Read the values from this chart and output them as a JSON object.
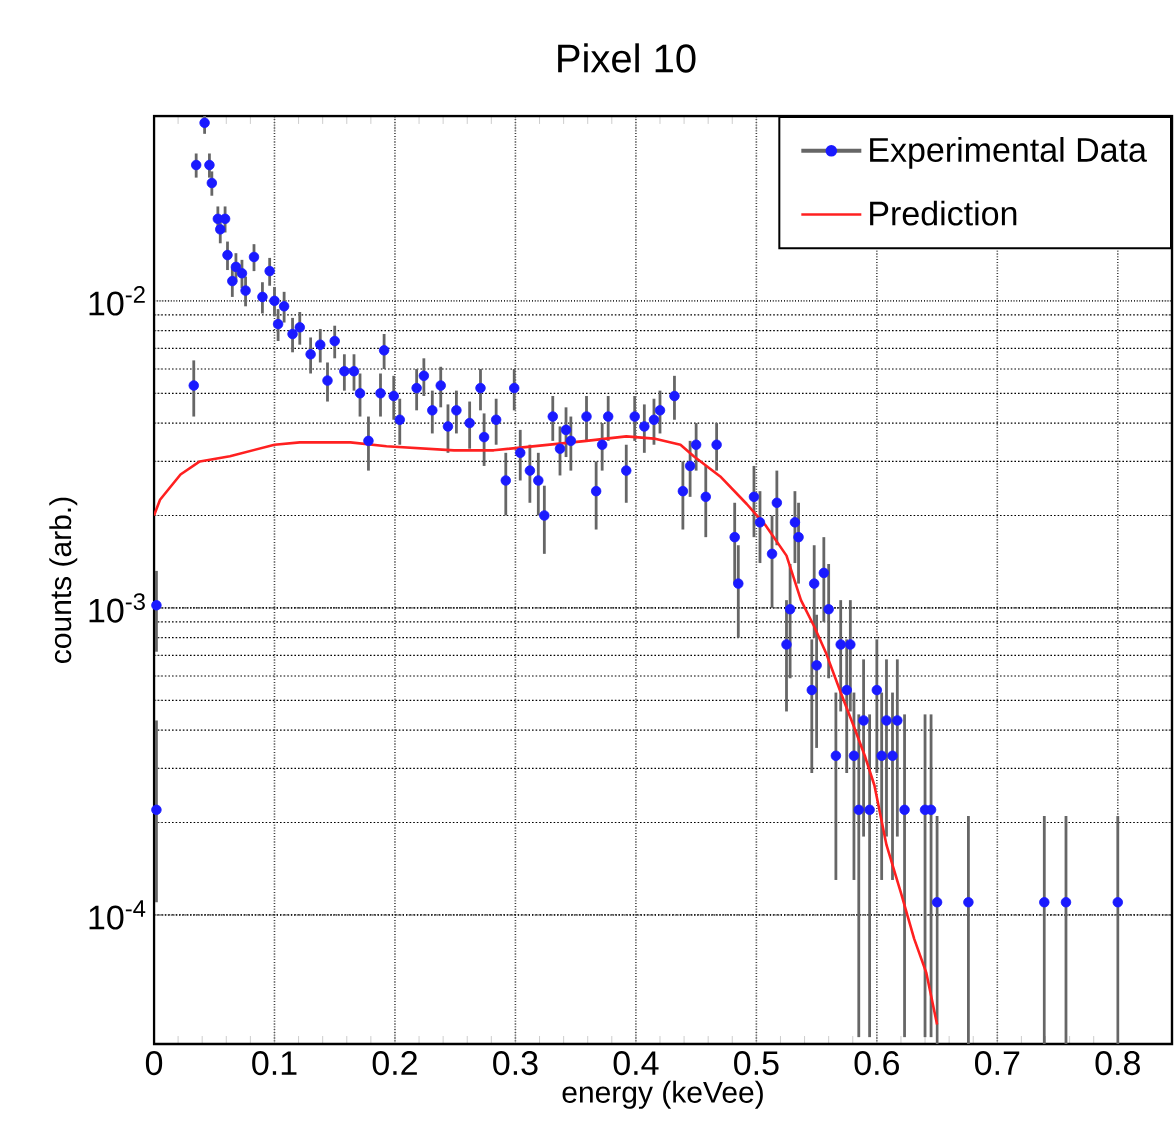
{
  "chart_data": {
    "type": "scatter",
    "title": "Pixel 10",
    "xlabel": "energy (keVee)",
    "ylabel": "counts (arb.)",
    "xlim": [
      0,
      0.845
    ],
    "ylim": [
      3.8e-05,
      0.04
    ],
    "log": true,
    "grid": true,
    "legend": "top right",
    "xticks": [
      0,
      0.1,
      0.2,
      0.3,
      0.4,
      0.5,
      0.6,
      0.7,
      0.8
    ],
    "yticks": [
      {
        "value": 0.0001,
        "label": "10$^{-4}$"
      },
      {
        "value": 0.001,
        "label": "10$^{-3}$"
      },
      {
        "value": 0.01,
        "label": "10$^{-2}$"
      }
    ],
    "series": [
      {
        "name": "Experimental Data",
        "marker": "circle",
        "color": "#1a1aff",
        "x": [
          0.002,
          0.002,
          0.033,
          0.035,
          0.042,
          0.046,
          0.048,
          0.053,
          0.055,
          0.059,
          0.061,
          0.068,
          0.065,
          0.073,
          0.076,
          0.083,
          0.09,
          0.096,
          0.1,
          0.103,
          0.108,
          0.115,
          0.121,
          0.13,
          0.138,
          0.144,
          0.15,
          0.158,
          0.166,
          0.171,
          0.178,
          0.188,
          0.191,
          0.199,
          0.204,
          0.218,
          0.224,
          0.231,
          0.238,
          0.244,
          0.251,
          0.262,
          0.271,
          0.274,
          0.284,
          0.292,
          0.299,
          0.304,
          0.312,
          0.319,
          0.324,
          0.331,
          0.337,
          0.342,
          0.346,
          0.359,
          0.367,
          0.372,
          0.377,
          0.392,
          0.399,
          0.407,
          0.415,
          0.42,
          0.432,
          0.439,
          0.445,
          0.45,
          0.458,
          0.467,
          0.482,
          0.485,
          0.498,
          0.503,
          0.513,
          0.517,
          0.525,
          0.528,
          0.532,
          0.535,
          0.546,
          0.548,
          0.55,
          0.556,
          0.56,
          0.566,
          0.57,
          0.575,
          0.578,
          0.581,
          0.585,
          0.589,
          0.594,
          0.6,
          0.604,
          0.608,
          0.613,
          0.617,
          0.623,
          0.64,
          0.645,
          0.65,
          0.676,
          0.739,
          0.757,
          0.8
        ],
        "values": [
          0.00102,
          0.00022,
          0.0053,
          0.0277,
          0.038,
          0.0277,
          0.0242,
          0.0185,
          0.0171,
          0.0185,
          0.0141,
          0.0129,
          0.0116,
          0.0123,
          0.0108,
          0.0139,
          0.0103,
          0.0125,
          0.01,
          0.0084,
          0.0096,
          0.0078,
          0.0082,
          0.0067,
          0.0072,
          0.0055,
          0.0074,
          0.0059,
          0.0059,
          0.005,
          0.0035,
          0.005,
          0.0069,
          0.0049,
          0.0041,
          0.0052,
          0.0057,
          0.0044,
          0.0053,
          0.0039,
          0.0044,
          0.004,
          0.0052,
          0.0036,
          0.0041,
          0.0026,
          0.0052,
          0.0032,
          0.0028,
          0.0026,
          0.002,
          0.0042,
          0.0033,
          0.0038,
          0.0035,
          0.0042,
          0.0024,
          0.0034,
          0.0042,
          0.0028,
          0.0042,
          0.0039,
          0.0041,
          0.0044,
          0.0049,
          0.0024,
          0.0029,
          0.0034,
          0.0023,
          0.0034,
          0.0017,
          0.0012,
          0.0023,
          0.0019,
          0.0015,
          0.0022,
          0.00076,
          0.00099,
          0.0019,
          0.0017,
          0.00054,
          0.0012,
          0.00065,
          0.0013,
          0.00099,
          0.00033,
          0.00076,
          0.00054,
          0.00076,
          0.00033,
          0.00022,
          0.00043,
          0.00022,
          0.00054,
          0.00033,
          0.00043,
          0.00033,
          0.00043,
          0.00022,
          0.00022,
          0.00022,
          0.00011,
          0.00011,
          0.00011,
          0.00011,
          0.00011
        ],
        "errors": [
          0.0003,
          [
            0.00011,
            0.00043
          ],
          0.0011,
          0.0025,
          0.003,
          0.0025,
          0.0022,
          0.0018,
          0.0017,
          0.0018,
          0.0015,
          0.0014,
          0.0013,
          0.0013,
          0.0012,
          0.0014,
          0.0012,
          0.0013,
          0.0011,
          0.001,
          0.0011,
          0.001,
          0.001,
          0.0009,
          0.0009,
          0.0008,
          0.0009,
          0.0008,
          0.0008,
          0.0008,
          0.0007,
          0.0008,
          0.0009,
          0.0008,
          0.0007,
          0.0008,
          0.0008,
          0.0007,
          0.0008,
          0.0007,
          0.0007,
          0.0007,
          0.0008,
          0.0007,
          0.0007,
          0.0006,
          0.0008,
          0.0006,
          0.0006,
          0.0006,
          0.0005,
          0.0007,
          0.0006,
          0.0007,
          0.0007,
          0.0007,
          0.0006,
          0.0006,
          0.0007,
          0.0006,
          0.0007,
          0.0007,
          0.0007,
          0.0007,
          0.0008,
          0.0006,
          0.0006,
          0.0006,
          0.0006,
          0.0006,
          0.0005,
          0.0004,
          0.0006,
          0.0005,
          0.0005,
          0.0006,
          0.0003,
          0.0004,
          0.0005,
          0.0005,
          0.00025,
          0.0004,
          0.0003,
          0.0004,
          0.0004,
          0.0002,
          0.0003,
          0.00025,
          0.0003,
          0.0002,
          [
            4e-05,
            0.00045
          ],
          0.00025,
          [
            4e-05,
            0.00045
          ],
          0.00025,
          0.0002,
          0.00025,
          0.0002,
          0.00025,
          [
            4e-05,
            0.00045
          ],
          [
            4e-05,
            0.00045
          ],
          [
            4e-05,
            0.00045
          ],
          [
            3.8e-05,
            0.00021
          ],
          [
            3.8e-05,
            0.00021
          ],
          [
            3.8e-05,
            0.00021
          ],
          [
            3.8e-05,
            0.00021
          ],
          [
            3.8e-05,
            0.00021
          ]
        ]
      },
      {
        "name": "Prediction",
        "type": "line",
        "color": "#ff2020",
        "x": [
          0,
          0.005,
          0.022,
          0.038,
          0.063,
          0.1,
          0.121,
          0.163,
          0.193,
          0.249,
          0.282,
          0.359,
          0.392,
          0.415,
          0.437,
          0.448,
          0.47,
          0.492,
          0.508,
          0.525,
          0.537,
          0.548,
          0.558,
          0.57,
          0.581,
          0.59,
          0.598,
          0.608,
          0.62,
          0.631,
          0.641,
          0.65
        ],
        "values": [
          0.002,
          0.00225,
          0.00272,
          0.003,
          0.00312,
          0.0034,
          0.00346,
          0.00346,
          0.00336,
          0.00326,
          0.00326,
          0.0035,
          0.00362,
          0.00356,
          0.0034,
          0.00312,
          0.00268,
          0.00218,
          0.00185,
          0.00148,
          0.00106,
          0.00087,
          0.00071,
          0.00053,
          0.00041,
          0.00033,
          0.000264,
          0.000169,
          0.000118,
          8.36e-05,
          6.49e-05,
          4.4e-05
        ]
      }
    ]
  }
}
